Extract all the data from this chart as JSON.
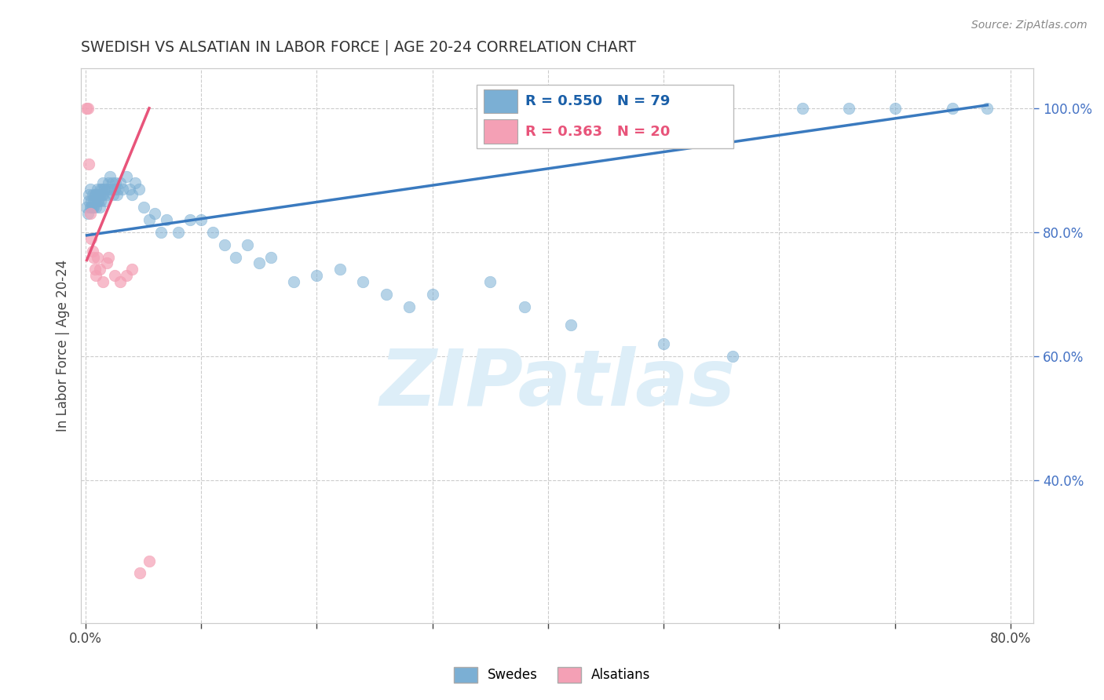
{
  "title": "SWEDISH VS ALSATIAN IN LABOR FORCE | AGE 20-24 CORRELATION CHART",
  "source": "Source: ZipAtlas.com",
  "ylabel": "In Labor Force | Age 20-24",
  "xlim": [
    -0.004,
    0.82
  ],
  "ylim": [
    0.17,
    1.065
  ],
  "xtick_positions": [
    0.0,
    0.1,
    0.2,
    0.3,
    0.4,
    0.5,
    0.6,
    0.7,
    0.8
  ],
  "xticklabels": [
    "0.0%",
    "",
    "",
    "",
    "",
    "",
    "",
    "",
    "80.0%"
  ],
  "ytick_positions": [
    0.4,
    0.6,
    0.8,
    1.0
  ],
  "ytick_labels": [
    "40.0%",
    "60.0%",
    "80.0%",
    "100.0%"
  ],
  "r_swedes": 0.55,
  "n_swedes": 79,
  "r_alsatians": 0.363,
  "n_alsatians": 20,
  "swedes_color": "#7bafd4",
  "alsatians_color": "#f4a0b5",
  "trend_swedes_color": "#3a7abf",
  "trend_alsatians_color": "#e8547a",
  "watermark": "ZIPatlas",
  "watermark_color": "#ddeef8",
  "legend_labels": [
    "Swedes",
    "Alsatians"
  ],
  "swedes_x": [
    0.001,
    0.002,
    0.003,
    0.003,
    0.004,
    0.004,
    0.005,
    0.005,
    0.006,
    0.006,
    0.007,
    0.007,
    0.008,
    0.008,
    0.009,
    0.009,
    0.01,
    0.01,
    0.011,
    0.011,
    0.012,
    0.012,
    0.013,
    0.013,
    0.014,
    0.014,
    0.015,
    0.015,
    0.016,
    0.017,
    0.018,
    0.019,
    0.02,
    0.021,
    0.022,
    0.023,
    0.024,
    0.025,
    0.026,
    0.027,
    0.028,
    0.03,
    0.032,
    0.035,
    0.038,
    0.04,
    0.043,
    0.046,
    0.05,
    0.055,
    0.06,
    0.065,
    0.07,
    0.08,
    0.09,
    0.1,
    0.11,
    0.12,
    0.13,
    0.14,
    0.15,
    0.16,
    0.18,
    0.2,
    0.22,
    0.24,
    0.26,
    0.28,
    0.3,
    0.35,
    0.38,
    0.42,
    0.5,
    0.56,
    0.62,
    0.66,
    0.7,
    0.75,
    0.78
  ],
  "swedes_y": [
    0.84,
    0.83,
    0.86,
    0.85,
    0.84,
    0.87,
    0.85,
    0.84,
    0.86,
    0.84,
    0.85,
    0.84,
    0.86,
    0.85,
    0.84,
    0.86,
    0.85,
    0.87,
    0.86,
    0.85,
    0.86,
    0.84,
    0.87,
    0.85,
    0.86,
    0.87,
    0.86,
    0.88,
    0.87,
    0.85,
    0.86,
    0.87,
    0.88,
    0.89,
    0.87,
    0.88,
    0.86,
    0.87,
    0.88,
    0.86,
    0.87,
    0.88,
    0.87,
    0.89,
    0.87,
    0.86,
    0.88,
    0.87,
    0.84,
    0.82,
    0.83,
    0.8,
    0.82,
    0.8,
    0.82,
    0.82,
    0.8,
    0.78,
    0.76,
    0.78,
    0.75,
    0.76,
    0.72,
    0.73,
    0.74,
    0.72,
    0.7,
    0.68,
    0.7,
    0.72,
    0.68,
    0.65,
    0.62,
    0.6,
    1.0,
    1.0,
    1.0,
    1.0,
    1.0
  ],
  "alsatians_x": [
    0.001,
    0.002,
    0.003,
    0.004,
    0.005,
    0.006,
    0.007,
    0.008,
    0.009,
    0.01,
    0.012,
    0.015,
    0.018,
    0.02,
    0.025,
    0.03,
    0.035,
    0.04,
    0.047,
    0.055
  ],
  "alsatians_y": [
    1.0,
    1.0,
    0.91,
    0.83,
    0.79,
    0.77,
    0.76,
    0.74,
    0.73,
    0.76,
    0.74,
    0.72,
    0.75,
    0.76,
    0.73,
    0.72,
    0.73,
    0.74,
    0.25,
    0.27
  ],
  "trend_sw_x0": 0.001,
  "trend_sw_x1": 0.78,
  "trend_sw_y0": 0.795,
  "trend_sw_y1": 1.005,
  "trend_al_x0": 0.001,
  "trend_al_x1": 0.055,
  "trend_al_y0": 0.755,
  "trend_al_y1": 1.0
}
